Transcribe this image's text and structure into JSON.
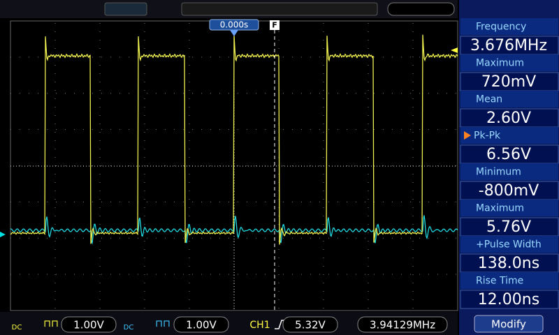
{
  "trigger_marker": {
    "time": "0.000s",
    "label": "F"
  },
  "measurements": [
    {
      "label": "Frequency",
      "value": "3.676MHz"
    },
    {
      "label": "Maximum",
      "value": "720mV"
    },
    {
      "label": "Mean",
      "value": "2.60V"
    },
    {
      "label": "Pk-Pk",
      "value": "6.56V"
    },
    {
      "label": "Minimum",
      "value": "-800mV"
    },
    {
      "label": "Maximum",
      "value": "5.76V"
    },
    {
      "label": "+Pulse Width",
      "value": "138.0ns"
    },
    {
      "label": "Rise Time",
      "value": "12.00ns"
    }
  ],
  "status_bar": {
    "ch1_coupling": "DC",
    "ch1_scale": "1.00V",
    "ch2_coupling": "DC",
    "ch2_scale": "1.00V",
    "trigger_source": "CH1",
    "trigger_level": "5.32V",
    "trigger_frequency": "3.94129MHz"
  },
  "modify_button": "Modify"
}
